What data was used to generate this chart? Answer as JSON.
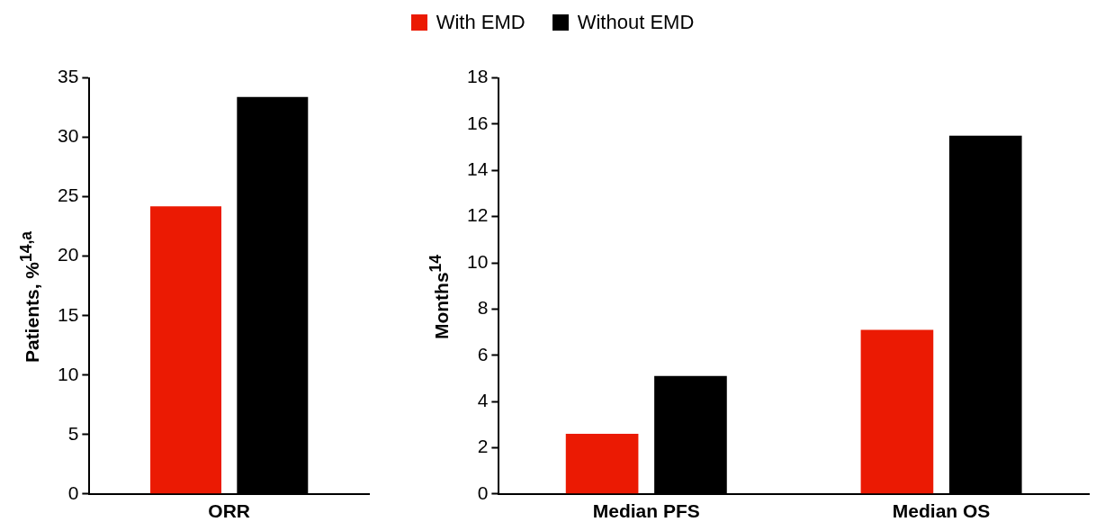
{
  "chart_data": [
    {
      "type": "bar",
      "ylabel": "Patients, %$^{14,a}$",
      "categories": [
        "ORR"
      ],
      "series": [
        {
          "name": "With EMD",
          "color": "#eb1a03",
          "values": [
            24.2
          ]
        },
        {
          "name": "Without EMD",
          "color": "#000000",
          "values": [
            33.4
          ]
        }
      ],
      "ylim": [
        0,
        35
      ],
      "yticks": [
        0,
        5,
        10,
        15,
        20,
        25,
        30,
        35
      ],
      "grid": false,
      "legend": "top"
    },
    {
      "type": "bar",
      "ylabel": "Months$^{14}$",
      "categories": [
        "Median PFS",
        "Median OS"
      ],
      "series": [
        {
          "color": "#eb1a03",
          "values": [
            2.6,
            7.1
          ]
        },
        {
          "color": "#000000",
          "values": [
            5.1,
            15.5
          ]
        }
      ],
      "ylim": [
        0,
        18
      ],
      "yticks": [
        0,
        2,
        4,
        6,
        8,
        10,
        12,
        14,
        16,
        18
      ],
      "grid": false
    }
  ]
}
